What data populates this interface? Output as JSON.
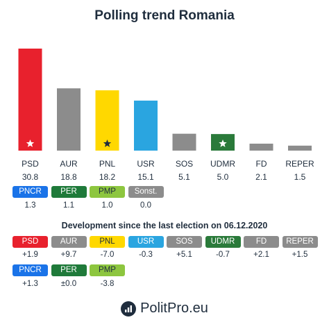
{
  "title": "Polling trend Romania",
  "chart_data": {
    "type": "bar",
    "title": "Polling trend Romania",
    "categories": [
      "PSD",
      "AUR",
      "PNL",
      "USR",
      "SOS",
      "UDMR",
      "FD",
      "REPER"
    ],
    "values": [
      30.8,
      18.8,
      18.2,
      15.1,
      5.1,
      5.0,
      2.1,
      1.5
    ],
    "value_labels": [
      "30.8",
      "18.8",
      "18.2",
      "15.1",
      "5.1",
      "5.0",
      "2.1",
      "1.5"
    ],
    "colors": [
      "#e8212d",
      "#8c8c8c",
      "#ffd800",
      "#2aa5e0",
      "#8c8c8c",
      "#2a7a3a",
      "#8c8c8c",
      "#8c8c8c"
    ],
    "markers": [
      "white-star",
      "",
      "black-star",
      "",
      "",
      "white-star",
      "",
      ""
    ],
    "ylim": [
      0,
      30.8
    ],
    "grid": false,
    "legend": "none"
  },
  "others": {
    "parties": [
      {
        "name": "PNCR",
        "value": "1.3",
        "color": "#1a73e8"
      },
      {
        "name": "PER",
        "value": "1.1",
        "color": "#1f7a3a"
      },
      {
        "name": "PMP",
        "value": "1.0",
        "color": "#8dc63f"
      },
      {
        "name": "Sonst.",
        "value": "0.0",
        "color": "#8c8c8c"
      }
    ]
  },
  "development": {
    "title": "Development since the last election on 06.12.2020",
    "row1": [
      {
        "name": "PSD",
        "value": "+1.9",
        "color": "#e8212d"
      },
      {
        "name": "AUR",
        "value": "+9.7",
        "color": "#8c8c8c"
      },
      {
        "name": "PNL",
        "value": "-7.0",
        "color": "#ffd800"
      },
      {
        "name": "USR",
        "value": "-0.3",
        "color": "#2aa5e0"
      },
      {
        "name": "SOS",
        "value": "+5.1",
        "color": "#8c8c8c"
      },
      {
        "name": "UDMR",
        "value": "-0.7",
        "color": "#2a7a3a"
      },
      {
        "name": "FD",
        "value": "+2.1",
        "color": "#8c8c8c"
      },
      {
        "name": "REPER",
        "value": "+1.5",
        "color": "#8c8c8c"
      }
    ],
    "row2": [
      {
        "name": "PNCR",
        "value": "+1.3",
        "color": "#1a73e8"
      },
      {
        "name": "PER",
        "value": "±0.0",
        "color": "#1f7a3a"
      },
      {
        "name": "PMP",
        "value": "-3.8",
        "color": "#8dc63f"
      }
    ]
  },
  "brand": {
    "text": "PolitPro.eu",
    "icon": "politpro-logo-icon"
  }
}
